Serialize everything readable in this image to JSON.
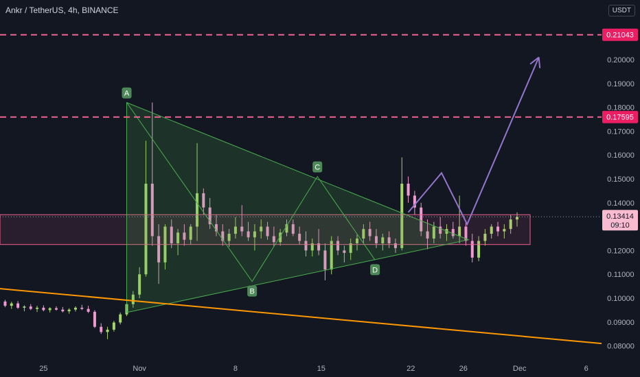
{
  "header": {
    "symbol_title": "Ankr / TetherUS, 4h, BINANCE",
    "currency": "USDT"
  },
  "colors": {
    "background": "#131722",
    "candle_up": "#26a69a",
    "candle_down": "#ef9ad2",
    "candle_up_fill": "#a5d66b",
    "triangle_fill": "#4caf50",
    "pink_line": "#f06292",
    "trendline": "#ff9800",
    "projection": "#9575cd",
    "axis_text": "#b2b5be"
  },
  "chart_data": {
    "type": "candlestick",
    "title": "Ankr / TetherUS, 4h, BINANCE",
    "ylabel": "USDT",
    "y_range": [
      0.075,
      0.225
    ],
    "y_ticks": [
      0.08,
      0.09,
      0.1,
      0.11,
      0.12,
      0.13,
      0.14,
      0.15,
      0.16,
      0.17,
      0.18,
      0.19,
      0.2
    ],
    "x_ticks": [
      "25",
      "Nov",
      "8",
      "15",
      "22",
      "26",
      "Dec",
      "6"
    ],
    "x_tick_days": [
      -6.5,
      1,
      8.5,
      15.2,
      22.2,
      26.3,
      30.7,
      35.9
    ],
    "x_day_range": [
      -9.9,
      37.1
    ],
    "horizontal_lines": [
      {
        "price": 0.21043,
        "label": "0.21043",
        "style": "dashed"
      },
      {
        "price": 0.17595,
        "label": "0.17595",
        "style": "dashed"
      }
    ],
    "current_price": {
      "label": "0.13414",
      "timer": "09:10",
      "price": 0.13414
    },
    "zone": {
      "top": 0.135,
      "bottom": 0.1225
    },
    "triangle": [
      {
        "day": 0.0,
        "price": 0.182
      },
      {
        "day": 26.7,
        "price": 0.1245
      },
      {
        "day": 0.0,
        "price": 0.094
      }
    ],
    "pattern_points": [
      {
        "label": "A",
        "day": 0.0,
        "price": 0.182
      },
      {
        "label": "B",
        "day": 9.8,
        "price": 0.107
      },
      {
        "label": "C",
        "day": 14.9,
        "price": 0.151
      },
      {
        "label": "D",
        "day": 19.4,
        "price": 0.116
      }
    ],
    "trendline": [
      {
        "day": -9.9,
        "price": 0.104
      },
      {
        "day": 37.1,
        "price": 0.081
      }
    ],
    "projection": [
      {
        "day": 22.0,
        "price": 0.136
      },
      {
        "day": 24.6,
        "price": 0.1525
      },
      {
        "day": 26.6,
        "price": 0.131
      },
      {
        "day": 32.2,
        "price": 0.201
      }
    ],
    "candles_ohlc": [
      {
        "x": -10.0,
        "o": 0.0982,
        "h": 0.0998,
        "l": 0.0978,
        "c": 0.0986
      },
      {
        "x": -9.5,
        "o": 0.0986,
        "h": 0.0993,
        "l": 0.0962,
        "c": 0.0968
      },
      {
        "x": -9.0,
        "o": 0.0968,
        "h": 0.0985,
        "l": 0.0955,
        "c": 0.0978
      },
      {
        "x": -8.5,
        "o": 0.0978,
        "h": 0.0988,
        "l": 0.0955,
        "c": 0.096
      },
      {
        "x": -8.0,
        "o": 0.096,
        "h": 0.097,
        "l": 0.0945,
        "c": 0.0965
      },
      {
        "x": -7.5,
        "o": 0.0965,
        "h": 0.0975,
        "l": 0.095,
        "c": 0.0955
      },
      {
        "x": -7.0,
        "o": 0.0955,
        "h": 0.0968,
        "l": 0.0942,
        "c": 0.096
      },
      {
        "x": -6.5,
        "o": 0.096,
        "h": 0.097,
        "l": 0.0945,
        "c": 0.095
      },
      {
        "x": -6.0,
        "o": 0.095,
        "h": 0.0962,
        "l": 0.094,
        "c": 0.0958
      },
      {
        "x": -5.5,
        "o": 0.0958,
        "h": 0.0966,
        "l": 0.0948,
        "c": 0.0952
      },
      {
        "x": -5.0,
        "o": 0.0952,
        "h": 0.0963,
        "l": 0.094,
        "c": 0.0945
      },
      {
        "x": -4.5,
        "o": 0.0945,
        "h": 0.0958,
        "l": 0.0935,
        "c": 0.0952
      },
      {
        "x": -4.0,
        "o": 0.0952,
        "h": 0.0966,
        "l": 0.0944,
        "c": 0.096
      },
      {
        "x": -3.5,
        "o": 0.096,
        "h": 0.0972,
        "l": 0.095,
        "c": 0.0955
      },
      {
        "x": -3.0,
        "o": 0.0955,
        "h": 0.0968,
        "l": 0.0938,
        "c": 0.0943
      },
      {
        "x": -2.5,
        "o": 0.0943,
        "h": 0.095,
        "l": 0.0875,
        "c": 0.088
      },
      {
        "x": -2.0,
        "o": 0.088,
        "h": 0.0895,
        "l": 0.085,
        "c": 0.0858
      },
      {
        "x": -1.5,
        "o": 0.0858,
        "h": 0.088,
        "l": 0.0828,
        "c": 0.0868
      },
      {
        "x": -1.0,
        "o": 0.0868,
        "h": 0.0905,
        "l": 0.086,
        "c": 0.0898
      },
      {
        "x": -0.5,
        "o": 0.0898,
        "h": 0.094,
        "l": 0.089,
        "c": 0.0932
      },
      {
        "x": 0.0,
        "o": 0.0932,
        "h": 0.0985,
        "l": 0.0925,
        "c": 0.0975
      },
      {
        "x": 0.5,
        "o": 0.0975,
        "h": 0.103,
        "l": 0.096,
        "c": 0.1015
      },
      {
        "x": 1.0,
        "o": 0.1015,
        "h": 0.113,
        "l": 0.1,
        "c": 0.11
      },
      {
        "x": 1.5,
        "o": 0.11,
        "h": 0.166,
        "l": 0.109,
        "c": 0.148
      },
      {
        "x": 2.0,
        "o": 0.148,
        "h": 0.182,
        "l": 0.122,
        "c": 0.126
      },
      {
        "x": 2.5,
        "o": 0.126,
        "h": 0.131,
        "l": 0.106,
        "c": 0.115
      },
      {
        "x": 3.0,
        "o": 0.115,
        "h": 0.131,
        "l": 0.112,
        "c": 0.13
      },
      {
        "x": 3.5,
        "o": 0.13,
        "h": 0.133,
        "l": 0.121,
        "c": 0.123
      },
      {
        "x": 4.0,
        "o": 0.123,
        "h": 0.129,
        "l": 0.118,
        "c": 0.1275
      },
      {
        "x": 4.5,
        "o": 0.1275,
        "h": 0.131,
        "l": 0.122,
        "c": 0.1245
      },
      {
        "x": 5.0,
        "o": 0.1245,
        "h": 0.131,
        "l": 0.1225,
        "c": 0.13
      },
      {
        "x": 5.5,
        "o": 0.13,
        "h": 0.165,
        "l": 0.124,
        "c": 0.144
      },
      {
        "x": 6.0,
        "o": 0.144,
        "h": 0.146,
        "l": 0.135,
        "c": 0.138
      },
      {
        "x": 6.5,
        "o": 0.138,
        "h": 0.142,
        "l": 0.129,
        "c": 0.131
      },
      {
        "x": 7.0,
        "o": 0.131,
        "h": 0.135,
        "l": 0.126,
        "c": 0.128
      },
      {
        "x": 7.5,
        "o": 0.128,
        "h": 0.131,
        "l": 0.122,
        "c": 0.124
      },
      {
        "x": 8.0,
        "o": 0.124,
        "h": 0.129,
        "l": 0.1215,
        "c": 0.127
      },
      {
        "x": 8.5,
        "o": 0.127,
        "h": 0.134,
        "l": 0.125,
        "c": 0.13
      },
      {
        "x": 9.0,
        "o": 0.13,
        "h": 0.139,
        "l": 0.126,
        "c": 0.128
      },
      {
        "x": 9.5,
        "o": 0.128,
        "h": 0.132,
        "l": 0.124,
        "c": 0.1255
      },
      {
        "x": 10.0,
        "o": 0.1255,
        "h": 0.131,
        "l": 0.12,
        "c": 0.128
      },
      {
        "x": 10.5,
        "o": 0.128,
        "h": 0.133,
        "l": 0.125,
        "c": 0.13
      },
      {
        "x": 11.0,
        "o": 0.13,
        "h": 0.132,
        "l": 0.1245,
        "c": 0.126
      },
      {
        "x": 11.5,
        "o": 0.126,
        "h": 0.13,
        "l": 0.1215,
        "c": 0.1235
      },
      {
        "x": 12.0,
        "o": 0.1235,
        "h": 0.129,
        "l": 0.122,
        "c": 0.1275
      },
      {
        "x": 12.5,
        "o": 0.1275,
        "h": 0.133,
        "l": 0.126,
        "c": 0.131
      },
      {
        "x": 13.0,
        "o": 0.131,
        "h": 0.133,
        "l": 0.126,
        "c": 0.127
      },
      {
        "x": 13.5,
        "o": 0.127,
        "h": 0.13,
        "l": 0.1225,
        "c": 0.124
      },
      {
        "x": 14.0,
        "o": 0.124,
        "h": 0.128,
        "l": 0.1175,
        "c": 0.12
      },
      {
        "x": 14.5,
        "o": 0.12,
        "h": 0.125,
        "l": 0.1175,
        "c": 0.123
      },
      {
        "x": 15.0,
        "o": 0.123,
        "h": 0.129,
        "l": 0.118,
        "c": 0.12
      },
      {
        "x": 15.5,
        "o": 0.12,
        "h": 0.123,
        "l": 0.1075,
        "c": 0.112
      },
      {
        "x": 16.0,
        "o": 0.112,
        "h": 0.126,
        "l": 0.11,
        "c": 0.124
      },
      {
        "x": 16.5,
        "o": 0.124,
        "h": 0.126,
        "l": 0.118,
        "c": 0.12
      },
      {
        "x": 17.0,
        "o": 0.12,
        "h": 0.122,
        "l": 0.115,
        "c": 0.119
      },
      {
        "x": 17.5,
        "o": 0.119,
        "h": 0.125,
        "l": 0.116,
        "c": 0.123
      },
      {
        "x": 18.0,
        "o": 0.123,
        "h": 0.127,
        "l": 0.12,
        "c": 0.125
      },
      {
        "x": 18.5,
        "o": 0.125,
        "h": 0.131,
        "l": 0.123,
        "c": 0.129
      },
      {
        "x": 19.0,
        "o": 0.129,
        "h": 0.132,
        "l": 0.124,
        "c": 0.126
      },
      {
        "x": 19.5,
        "o": 0.126,
        "h": 0.129,
        "l": 0.121,
        "c": 0.123
      },
      {
        "x": 20.0,
        "o": 0.123,
        "h": 0.127,
        "l": 0.12,
        "c": 0.1255
      },
      {
        "x": 20.5,
        "o": 0.1255,
        "h": 0.128,
        "l": 0.121,
        "c": 0.123
      },
      {
        "x": 21.0,
        "o": 0.123,
        "h": 0.125,
        "l": 0.119,
        "c": 0.121
      },
      {
        "x": 21.5,
        "o": 0.121,
        "h": 0.159,
        "l": 0.12,
        "c": 0.148
      },
      {
        "x": 22.0,
        "o": 0.148,
        "h": 0.151,
        "l": 0.14,
        "c": 0.143
      },
      {
        "x": 22.5,
        "o": 0.143,
        "h": 0.145,
        "l": 0.135,
        "c": 0.138
      },
      {
        "x": 23.0,
        "o": 0.138,
        "h": 0.14,
        "l": 0.126,
        "c": 0.128
      },
      {
        "x": 23.5,
        "o": 0.128,
        "h": 0.133,
        "l": 0.1205,
        "c": 0.125
      },
      {
        "x": 24.0,
        "o": 0.125,
        "h": 0.132,
        "l": 0.123,
        "c": 0.13
      },
      {
        "x": 24.5,
        "o": 0.13,
        "h": 0.134,
        "l": 0.125,
        "c": 0.127
      },
      {
        "x": 25.0,
        "o": 0.127,
        "h": 0.131,
        "l": 0.124,
        "c": 0.129
      },
      {
        "x": 25.5,
        "o": 0.129,
        "h": 0.132,
        "l": 0.125,
        "c": 0.126
      },
      {
        "x": 26.0,
        "o": 0.126,
        "h": 0.143,
        "l": 0.123,
        "c": 0.13
      },
      {
        "x": 26.5,
        "o": 0.13,
        "h": 0.132,
        "l": 0.122,
        "c": 0.124
      },
      {
        "x": 27.0,
        "o": 0.124,
        "h": 0.127,
        "l": 0.115,
        "c": 0.117
      },
      {
        "x": 27.5,
        "o": 0.117,
        "h": 0.126,
        "l": 0.1155,
        "c": 0.124
      },
      {
        "x": 28.0,
        "o": 0.124,
        "h": 0.129,
        "l": 0.122,
        "c": 0.127
      },
      {
        "x": 28.5,
        "o": 0.127,
        "h": 0.131,
        "l": 0.125,
        "c": 0.13
      },
      {
        "x": 29.0,
        "o": 0.13,
        "h": 0.132,
        "l": 0.126,
        "c": 0.128
      },
      {
        "x": 29.5,
        "o": 0.128,
        "h": 0.131,
        "l": 0.125,
        "c": 0.129
      },
      {
        "x": 30.0,
        "o": 0.129,
        "h": 0.135,
        "l": 0.127,
        "c": 0.133
      },
      {
        "x": 30.5,
        "o": 0.133,
        "h": 0.136,
        "l": 0.13,
        "c": 0.1341
      }
    ]
  }
}
